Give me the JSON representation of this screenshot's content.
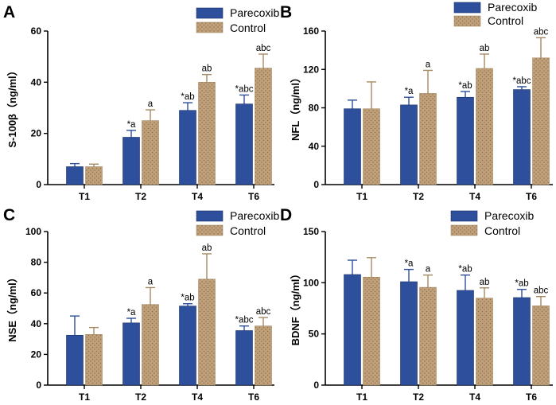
{
  "colors": {
    "parecoxib": "#2d4f9c",
    "control": "#bfa07a",
    "control_dot": "#8a6f4a",
    "axis": "#000000",
    "error_parecoxib": "#2d4f9c",
    "error_control": "#a58a63"
  },
  "chart_data": [
    {
      "type": "bar",
      "panel": "A",
      "ylabel": "S-100β（ng/ml）",
      "ylim": [
        0,
        60
      ],
      "yticks": [
        0,
        20,
        40,
        60
      ],
      "ytick_labels": [
        "0",
        "20",
        "40",
        "60"
      ],
      "categories": [
        "T1",
        "T2",
        "T4",
        "T6"
      ],
      "legend": [
        "Parecoxib",
        "Control"
      ],
      "series": [
        {
          "name": "Parecoxib",
          "values": [
            7,
            18.5,
            29,
            31.5
          ],
          "errors": [
            1.2,
            2.7,
            3,
            3.5
          ],
          "annotations": [
            "",
            "*a",
            "*ab",
            "*abc"
          ]
        },
        {
          "name": "Control",
          "values": [
            7,
            25,
            40,
            45.5
          ],
          "errors": [
            1,
            4.2,
            3,
            5.5
          ],
          "annotations": [
            "",
            "a",
            "ab",
            "abc"
          ]
        }
      ]
    },
    {
      "type": "bar",
      "panel": "B",
      "ylabel": "NFL（ng/ml）",
      "ylim": [
        0,
        160
      ],
      "yticks": [
        0,
        40,
        80,
        120,
        160
      ],
      "ytick_labels": [
        "0",
        "40",
        "80",
        "120",
        "160"
      ],
      "categories": [
        "T1",
        "T2",
        "T4",
        "T6"
      ],
      "legend": [
        "Parecoxib",
        "Control"
      ],
      "series": [
        {
          "name": "Parecoxib",
          "values": [
            79,
            83,
            91,
            99
          ],
          "errors": [
            9,
            8,
            6,
            3
          ],
          "annotations": [
            "",
            "*a",
            "*ab",
            "*abc"
          ]
        },
        {
          "name": "Control",
          "values": [
            79,
            95,
            121,
            132
          ],
          "errors": [
            28,
            24,
            15,
            21
          ],
          "annotations": [
            "",
            "a",
            "ab",
            "abc"
          ]
        }
      ]
    },
    {
      "type": "bar",
      "panel": "C",
      "ylabel": "NSE（ng/ml）",
      "ylim": [
        0,
        100
      ],
      "yticks": [
        0,
        20,
        40,
        60,
        80,
        100
      ],
      "ytick_labels": [
        "0",
        "20",
        "40",
        "60",
        "80",
        "100"
      ],
      "categories": [
        "T1",
        "T2",
        "T4",
        "T6"
      ],
      "legend": [
        "Parecoxib",
        "Control"
      ],
      "series": [
        {
          "name": "Parecoxib",
          "values": [
            32.5,
            40.5,
            51.5,
            35.5
          ],
          "errors": [
            12.5,
            3,
            1.5,
            3
          ],
          "annotations": [
            "",
            "*a",
            "*ab",
            "*abc"
          ]
        },
        {
          "name": "Control",
          "values": [
            33,
            52.5,
            69,
            38.5
          ],
          "errors": [
            4.5,
            11,
            16.5,
            5.5
          ],
          "annotations": [
            "",
            "a",
            "ab",
            "abc"
          ]
        }
      ]
    },
    {
      "type": "bar",
      "panel": "D",
      "ylabel": "BDNF（ng/ml）",
      "ylim": [
        0,
        150
      ],
      "yticks": [
        0,
        50,
        100,
        150
      ],
      "ytick_labels": [
        "0",
        "50",
        "100",
        "150"
      ],
      "categories": [
        "T1",
        "T2",
        "T4",
        "T6"
      ],
      "legend": [
        "Parecoxib",
        "Control"
      ],
      "series": [
        {
          "name": "Parecoxib",
          "values": [
            108,
            101,
            92.5,
            85.5
          ],
          "errors": [
            14,
            12,
            15,
            8
          ],
          "annotations": [
            "",
            "*a",
            "*ab",
            "*ab"
          ]
        },
        {
          "name": "Control",
          "values": [
            105.5,
            95.5,
            85,
            77.5
          ],
          "errors": [
            19,
            12,
            10,
            9
          ],
          "annotations": [
            "",
            "a",
            "ab",
            "abc"
          ]
        }
      ]
    }
  ]
}
